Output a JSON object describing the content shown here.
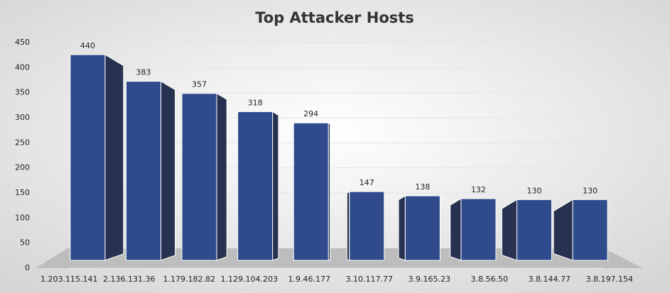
{
  "chart_data": {
    "type": "bar3d",
    "title": "Top Attacker Hosts",
    "categories": [
      "1.203.115.141",
      "2.136.131.36",
      "1.179.182.82",
      "1.129.104.203",
      "1.9.46.177",
      "3.10.117.77",
      "3.9.165.23",
      "3.8.56.50",
      "3.8.144.77",
      "3.8.197.154"
    ],
    "values": [
      440,
      383,
      357,
      318,
      294,
      147,
      138,
      132,
      130,
      130
    ],
    "color": "#2f4b8c",
    "ylim": [
      0,
      450
    ],
    "yticks": [
      0,
      50,
      100,
      150,
      200,
      250,
      300,
      350,
      400,
      450
    ],
    "grid": true
  }
}
